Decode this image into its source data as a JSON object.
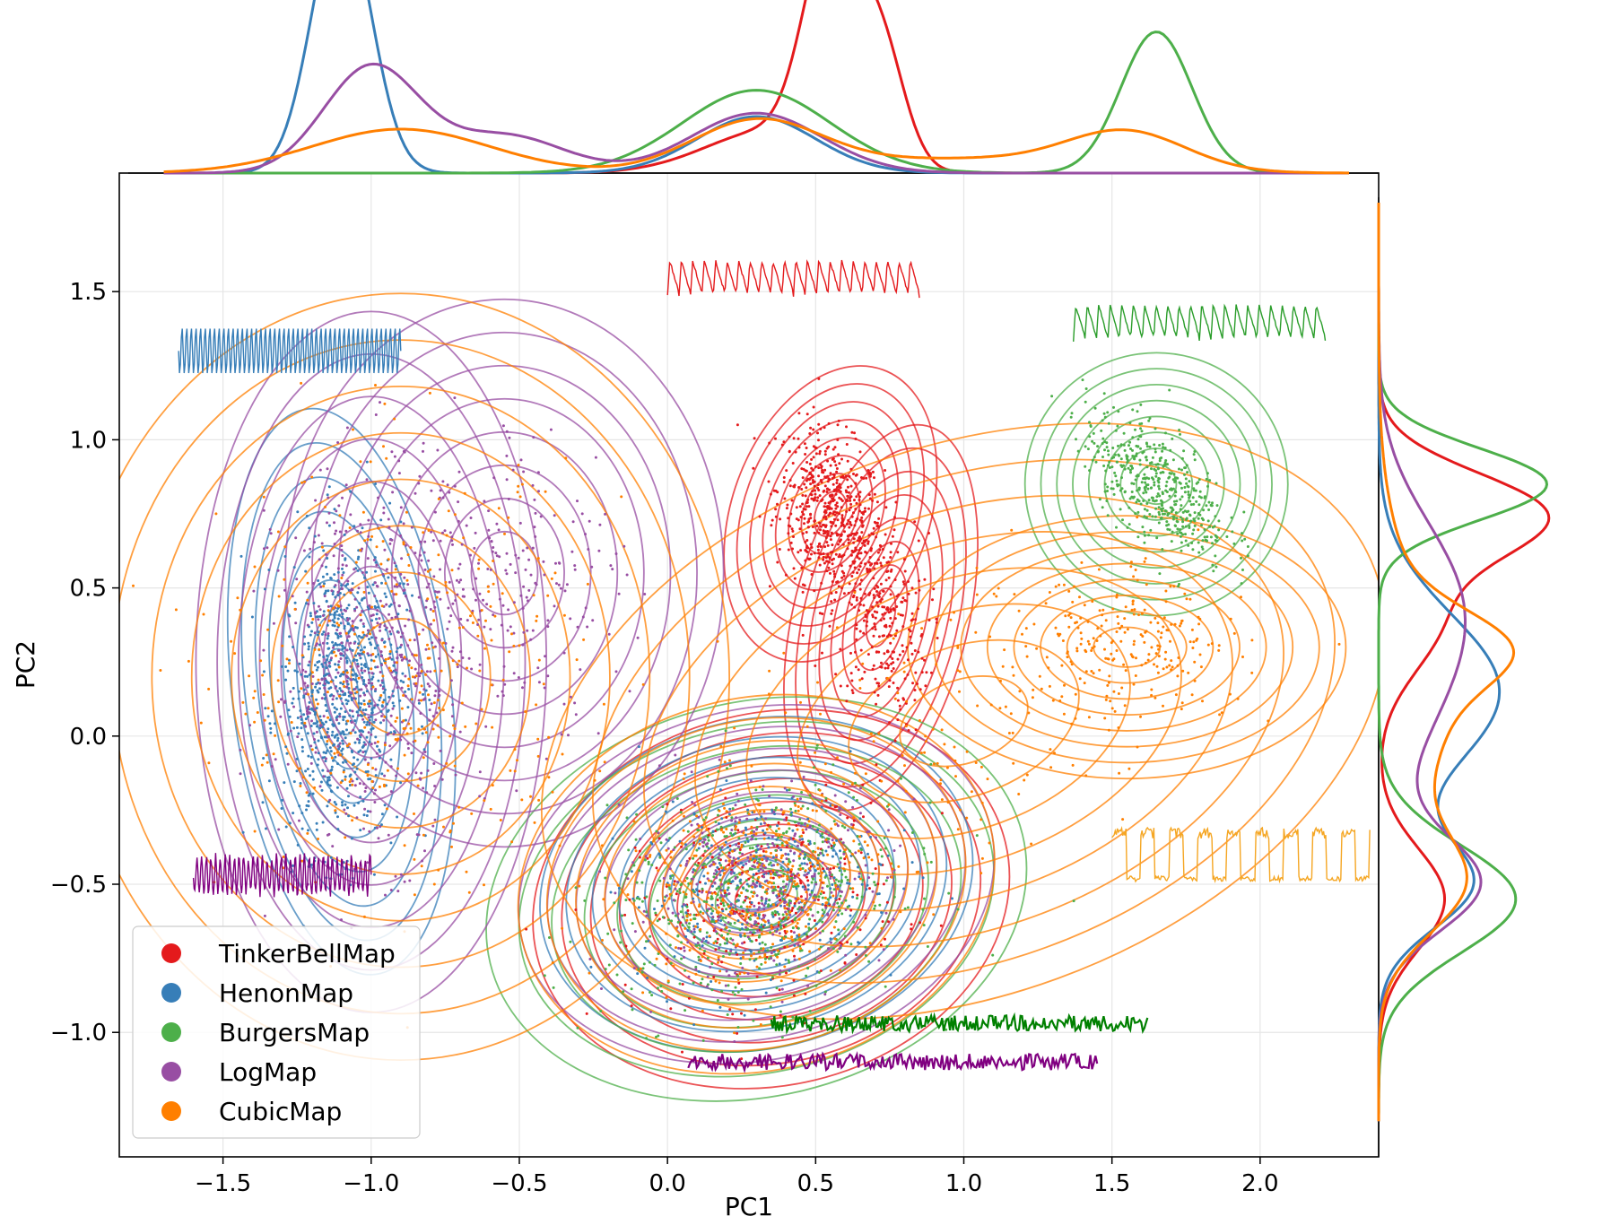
{
  "chart_data": {
    "type": "scatter",
    "title": "",
    "xlabel": "PC1",
    "ylabel": "PC2",
    "xlim": [
      -1.85,
      2.4
    ],
    "ylim": [
      -1.42,
      1.9
    ],
    "xticks": [
      -1.5,
      -1.0,
      -0.5,
      0.0,
      0.5,
      1.0,
      1.5,
      2.0
    ],
    "xtick_labels": [
      "−1.5",
      "−1.0",
      "−0.5",
      "0.0",
      "0.5",
      "1.0",
      "1.5",
      "2.0"
    ],
    "yticks": [
      -1.0,
      -0.5,
      0.0,
      0.5,
      1.0,
      1.5
    ],
    "ytick_labels": [
      "−1.0",
      "−0.5",
      "0.0",
      "0.5",
      "1.0",
      "1.5"
    ],
    "grid": true,
    "legend_position": "lower-left",
    "marginal_kde": {
      "top": "PC1 density",
      "right": "PC2 density"
    },
    "series": [
      {
        "name": "TinkerBellMap",
        "color": "#e41a1c",
        "clusters": [
          {
            "center": [
              0.55,
              0.75
            ],
            "sd": [
              0.09,
              0.14
            ],
            "rho": -0.3,
            "weight": 0.5
          },
          {
            "center": [
              0.72,
              0.4
            ],
            "sd": [
              0.08,
              0.18
            ],
            "rho": -0.2,
            "weight": 0.25
          },
          {
            "center": [
              0.35,
              -0.55
            ],
            "sd": [
              0.22,
              0.17
            ],
            "rho": 0.2,
            "weight": 0.25
          }
        ]
      },
      {
        "name": "HenonMap",
        "color": "#377eb8",
        "clusters": [
          {
            "center": [
              -1.1,
              0.15
            ],
            "sd": [
              0.1,
              0.26
            ],
            "rho": 0.1,
            "weight": 0.7
          },
          {
            "center": [
              0.3,
              -0.5
            ],
            "sd": [
              0.2,
              0.15
            ],
            "rho": 0.2,
            "weight": 0.3
          }
        ]
      },
      {
        "name": "BurgersMap",
        "color": "#4daf4a",
        "clusters": [
          {
            "center": [
              1.65,
              0.85
            ],
            "sd": [
              0.12,
              0.12
            ],
            "rho": -0.6,
            "weight": 0.45
          },
          {
            "center": [
              0.3,
              -0.55
            ],
            "sd": [
              0.25,
              0.18
            ],
            "rho": 0.2,
            "weight": 0.55
          }
        ]
      },
      {
        "name": "LogMap",
        "color": "#984ea3",
        "clusters": [
          {
            "center": [
              -1.0,
              0.25
            ],
            "sd": [
              0.16,
              0.32
            ],
            "rho": 0.0,
            "weight": 0.45
          },
          {
            "center": [
              -0.55,
              0.55
            ],
            "sd": [
              0.2,
              0.25
            ],
            "rho": 0.0,
            "weight": 0.2
          },
          {
            "center": [
              0.3,
              -0.5
            ],
            "sd": [
              0.22,
              0.16
            ],
            "rho": 0.2,
            "weight": 0.35
          }
        ]
      },
      {
        "name": "CubicMap",
        "color": "#ff7f00",
        "clusters": [
          {
            "center": [
              -0.9,
              0.2
            ],
            "sd": [
              0.3,
              0.35
            ],
            "rho": 0.0,
            "weight": 0.35
          },
          {
            "center": [
              1.55,
              0.3
            ],
            "sd": [
              0.2,
              0.12
            ],
            "rho": 0.0,
            "weight": 0.2
          },
          {
            "center": [
              1.0,
              0.05
            ],
            "sd": [
              0.4,
              0.25
            ],
            "rho": 0.3,
            "weight": 0.15
          },
          {
            "center": [
              0.3,
              -0.5
            ],
            "sd": [
              0.22,
              0.17
            ],
            "rho": 0.2,
            "weight": 0.3
          }
        ]
      }
    ],
    "inset_signals": [
      {
        "series": "HenonMap",
        "color": "#377eb8",
        "kind": "fast-oscillation",
        "x_range": [
          -1.65,
          -0.9
        ],
        "y_center": 1.3
      },
      {
        "series": "TinkerBellMap",
        "color": "#e41a1c",
        "kind": "sawtooth",
        "x_range": [
          0.0,
          0.85
        ],
        "y_center": 1.55
      },
      {
        "series": "BurgersMap",
        "color": "#2a9d2a",
        "kind": "sawtooth",
        "x_range": [
          1.37,
          2.22
        ],
        "y_center": 1.4
      },
      {
        "series": "LogMap",
        "color": "#800080",
        "kind": "noisy-oscillation",
        "x_range": [
          -1.6,
          -1.0
        ],
        "y_center": -0.47
      },
      {
        "series": "CubicMap",
        "color": "#f5a623",
        "kind": "square-wave",
        "x_range": [
          1.5,
          2.37
        ],
        "y_center": -0.4
      },
      {
        "series": "BurgersMap",
        "color": "#008000",
        "kind": "noise",
        "x_range": [
          0.35,
          1.62
        ],
        "y_center": -0.97
      },
      {
        "series": "LogMap",
        "color": "#800080",
        "kind": "noise",
        "x_range": [
          0.07,
          1.45
        ],
        "y_center": -1.1
      }
    ]
  }
}
